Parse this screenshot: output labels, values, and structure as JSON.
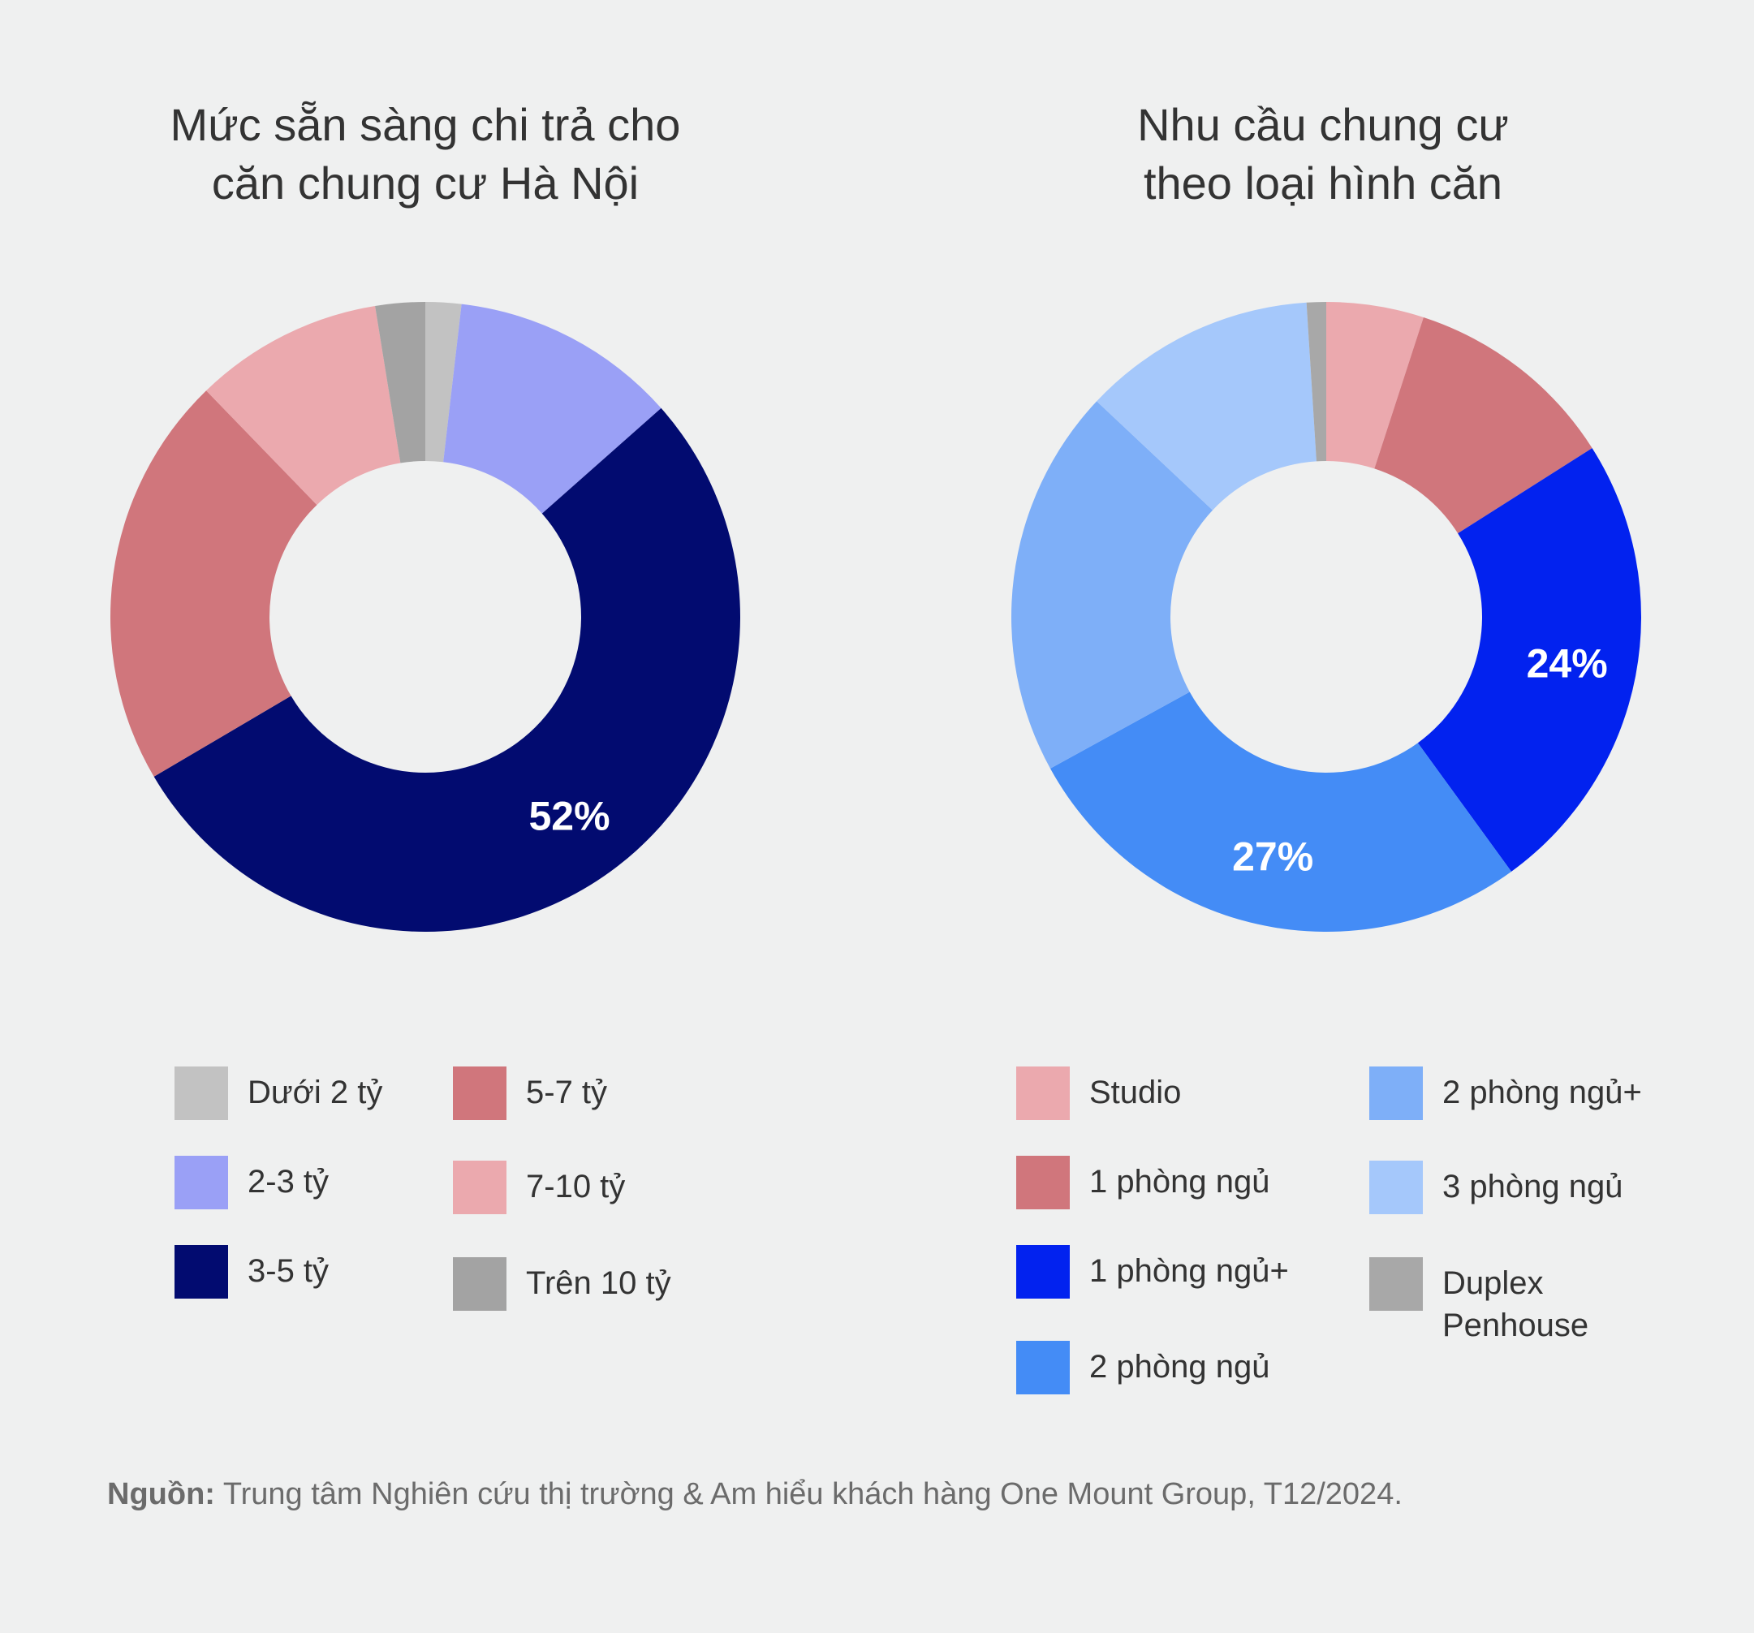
{
  "chart_data": [
    {
      "type": "donut",
      "title": [
        "Mức sẵn sàng chi trả cho",
        "căn chung cư Hà Nội"
      ],
      "categories": [
        "Dưới 2 tỷ",
        "2-3 tỷ",
        "3-5 tỷ",
        "5-7 tỷ",
        "7-10 tỷ",
        "Trên 10 tỷ"
      ],
      "values": [
        1.8,
        11.4,
        52,
        20.8,
        9.5,
        2.5
      ],
      "colors": [
        "#c2c2c2",
        "#9aa0f6",
        "#020b70",
        "#d0767c",
        "#eba9ae",
        "#a3a3a3"
      ],
      "slice_order": [
        0,
        1,
        2,
        3,
        4,
        5
      ],
      "data_labels": [
        {
          "index": 2,
          "text": "52%"
        }
      ]
    },
    {
      "type": "donut",
      "title": [
        "Nhu cầu chung cư",
        "theo loại hình căn"
      ],
      "categories": [
        "Studio",
        "1 phòng ngủ",
        "1 phòng ngủ+",
        "2 phòng ngủ",
        "2 phòng ngủ+",
        "3 phòng ngủ",
        "Duplex\nPenhouse"
      ],
      "values": [
        5,
        11,
        24,
        27,
        20,
        12,
        1
      ],
      "colors": [
        "#eba9ae",
        "#d0767c",
        "#0222ef",
        "#448cf6",
        "#7eaff8",
        "#a5c8fb",
        "#a8a8a8"
      ],
      "slice_order": [
        0,
        1,
        2,
        3,
        4,
        5,
        6
      ],
      "data_labels": [
        {
          "index": 2,
          "text": "24%"
        },
        {
          "index": 3,
          "text": "27%"
        }
      ]
    }
  ],
  "legend_left": {
    "items": [
      {
        "label": "Dưới 2 tỷ",
        "color": "#c2c2c2"
      },
      {
        "label": "2-3 tỷ",
        "color": "#9aa0f6"
      },
      {
        "label": "3-5 tỷ",
        "color": "#020b70"
      },
      {
        "label": "5-7 tỷ",
        "color": "#d0767c"
      },
      {
        "label": "7-10 tỷ",
        "color": "#eba9ae"
      },
      {
        "label": "Trên 10 tỷ",
        "color": "#a3a3a3"
      }
    ]
  },
  "legend_right": {
    "items": [
      {
        "label": "Studio",
        "color": "#eba9ae"
      },
      {
        "label": "1 phòng ngủ",
        "color": "#d0767c"
      },
      {
        "label": "1 phòng ngủ+",
        "color": "#0222ef"
      },
      {
        "label": "2 phòng ngủ",
        "color": "#448cf6"
      },
      {
        "label": "2 phòng ngủ+",
        "color": "#7eaff8"
      },
      {
        "label": "3 phòng ngủ",
        "color": "#a5c8fb"
      },
      {
        "label": "Duplex\nPenhouse",
        "color": "#a8a8a8"
      }
    ]
  },
  "source": {
    "label": "Nguồn:",
    "text": " Trung tâm Nghiên cứu thị trường & Am hiểu khách hàng One Mount Group, T12/2024."
  }
}
